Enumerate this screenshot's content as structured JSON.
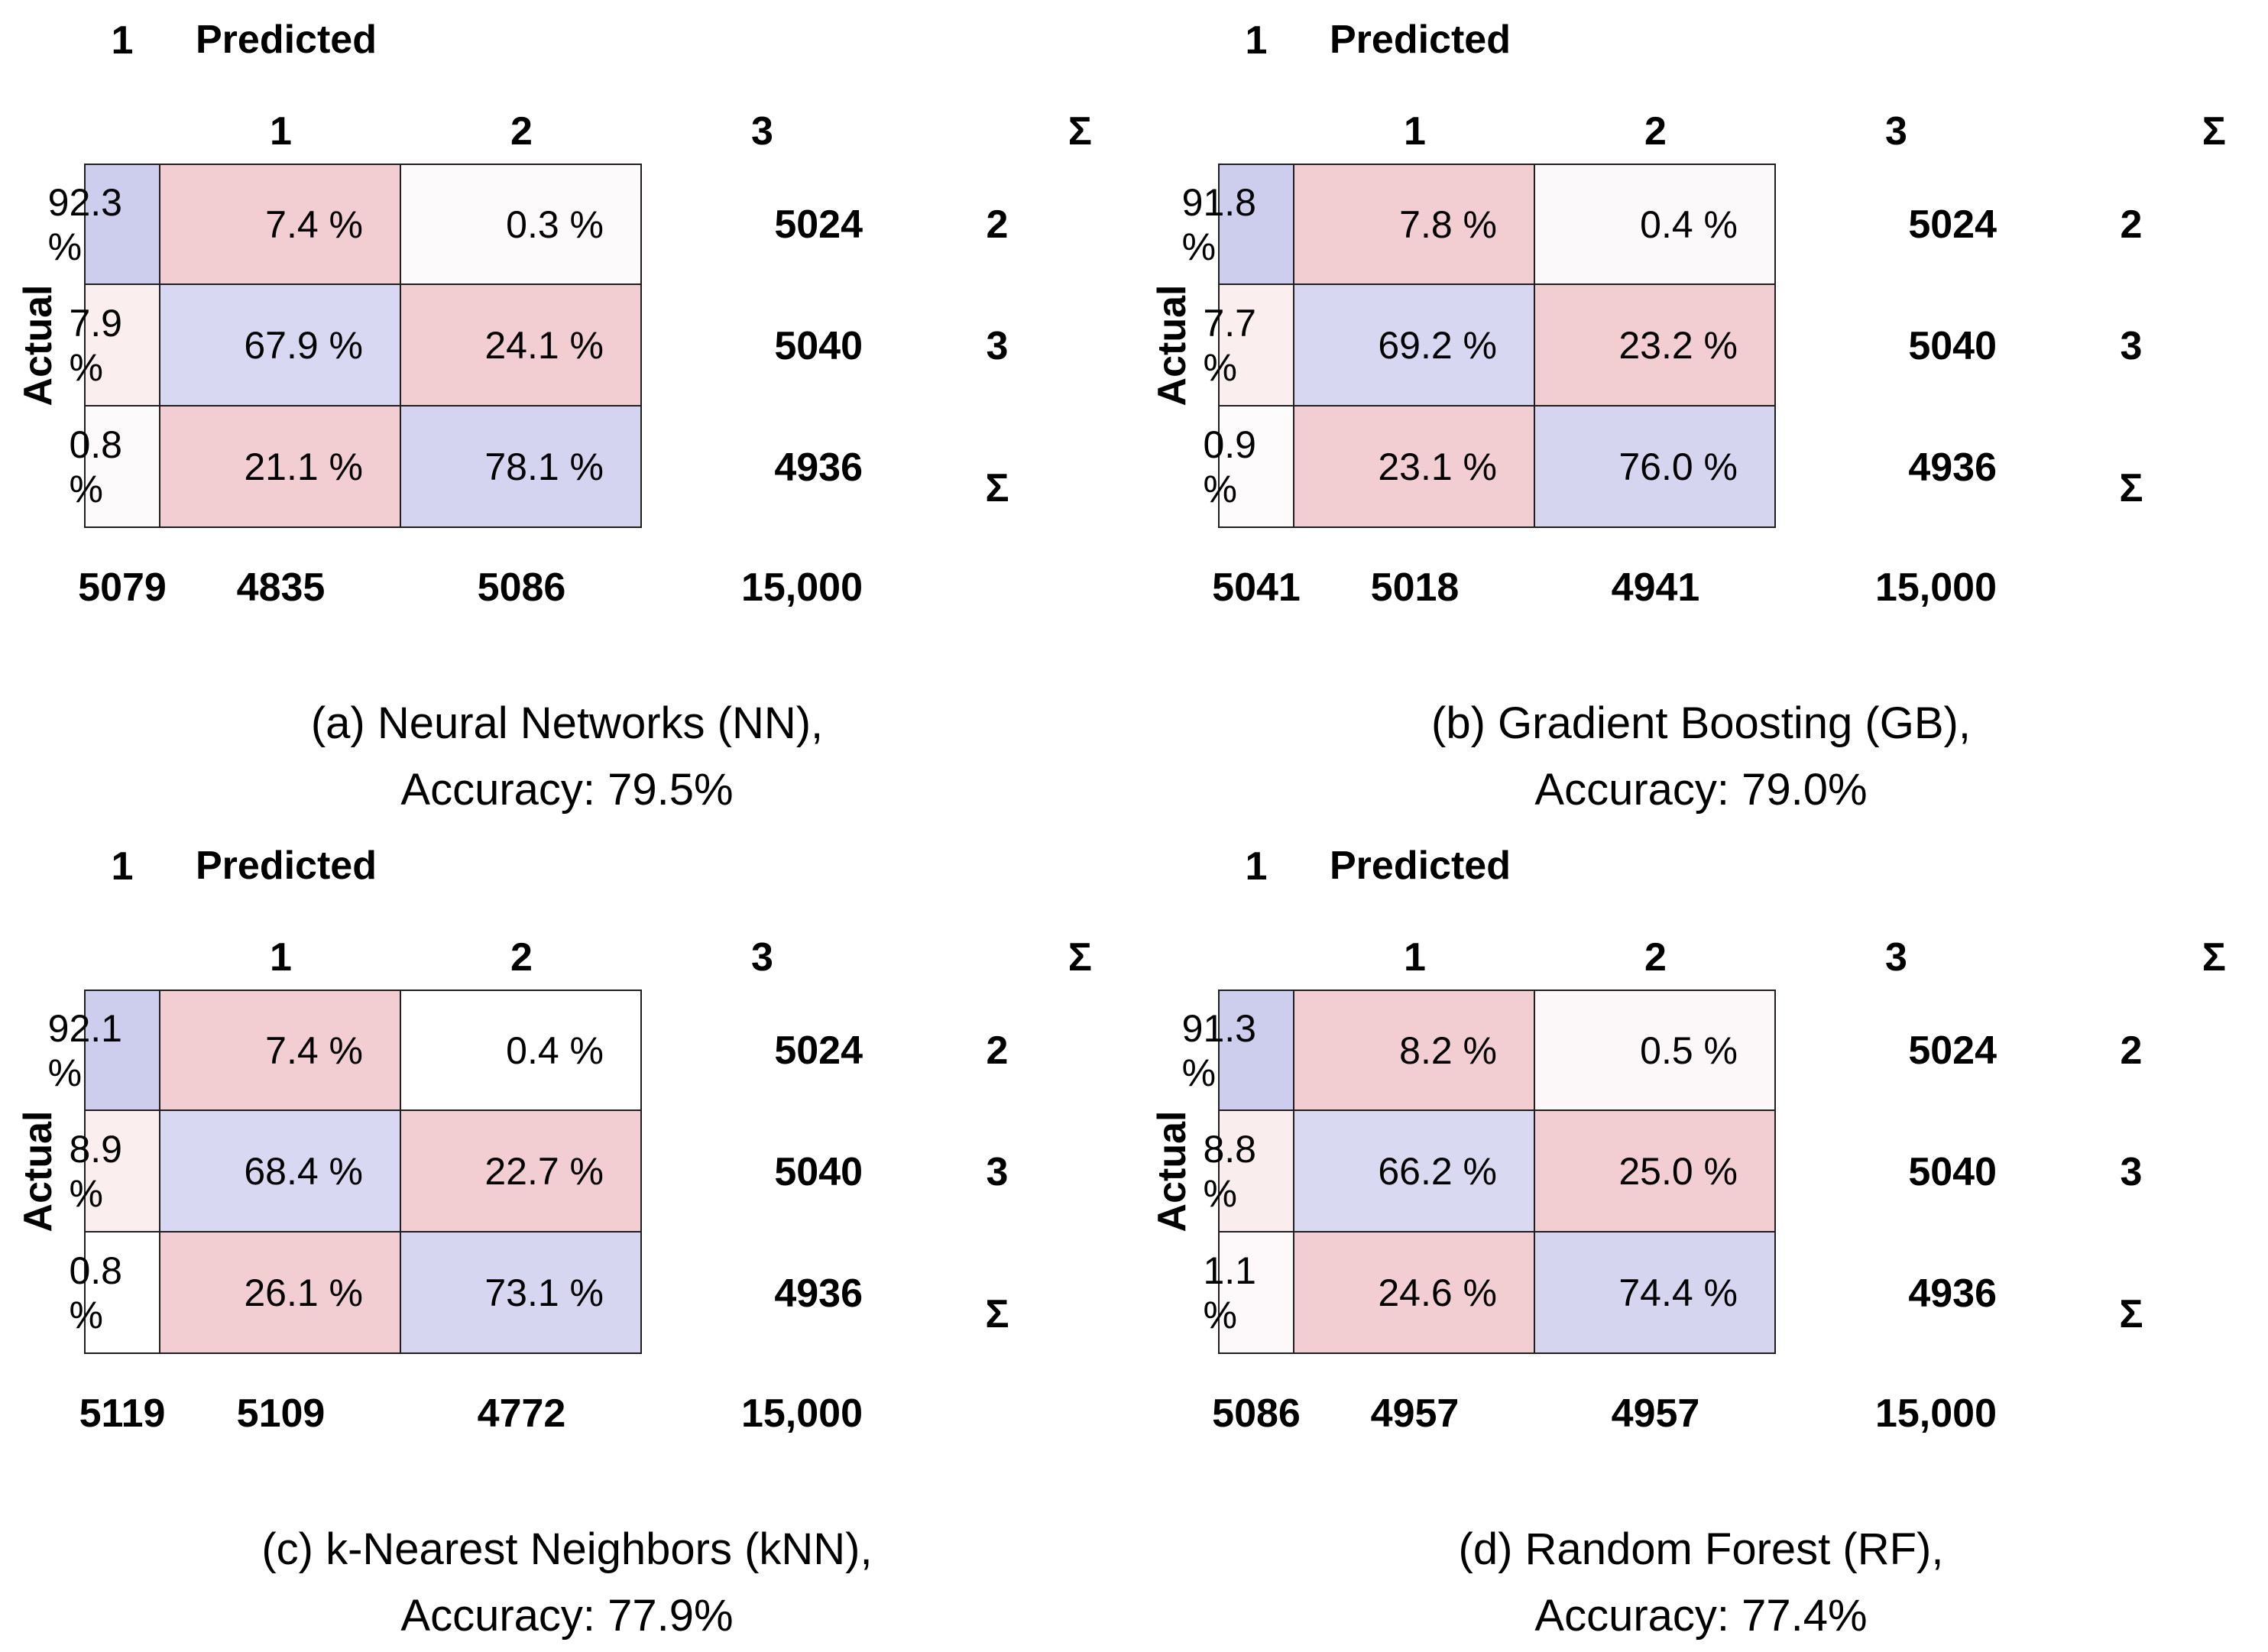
{
  "figure": {
    "background": "#ffffff",
    "grid_border_color": "#1f1f1f",
    "diag_blue": "#cdcdee",
    "offdiag_pink": "#f2ced2"
  },
  "panels": [
    {
      "id": "a",
      "predicted_label": "Predicted",
      "actual_label": "Actual",
      "sum_symbol": "Σ",
      "col_headers": [
        "1",
        "2",
        "3"
      ],
      "row_headers": [
        "1",
        "2",
        "3"
      ],
      "rows": [
        {
          "cells": [
            {
              "v": "92.3 %",
              "bg": "#cdcdee"
            },
            {
              "v": "7.4 %",
              "bg": "#f2ced2"
            },
            {
              "v": "0.3 %",
              "bg": "#fdfafb"
            }
          ],
          "total": "5024"
        },
        {
          "cells": [
            {
              "v": "7.9 %",
              "bg": "#faeeee"
            },
            {
              "v": "67.9 %",
              "bg": "#d8d8f2"
            },
            {
              "v": "24.1 %",
              "bg": "#f2ced2"
            }
          ],
          "total": "5040"
        },
        {
          "cells": [
            {
              "v": "0.8 %",
              "bg": "#fdfafb"
            },
            {
              "v": "21.1 %",
              "bg": "#f2ced2"
            },
            {
              "v": "78.1 %",
              "bg": "#d4d4f0"
            }
          ],
          "total": "4936"
        }
      ],
      "col_totals": [
        "5079",
        "4835",
        "5086"
      ],
      "grand_total": "15,000",
      "caption_line1": "(a) Neural Networks (NN),",
      "caption_line2": "Accuracy: 79.5%"
    },
    {
      "id": "b",
      "predicted_label": "Predicted",
      "actual_label": "Actual",
      "sum_symbol": "Σ",
      "col_headers": [
        "1",
        "2",
        "3"
      ],
      "row_headers": [
        "1",
        "2",
        "3"
      ],
      "rows": [
        {
          "cells": [
            {
              "v": "91.8 %",
              "bg": "#cdcdee"
            },
            {
              "v": "7.8 %",
              "bg": "#f2ced2"
            },
            {
              "v": "0.4 %",
              "bg": "#fcf9fa"
            }
          ],
          "total": "5024"
        },
        {
          "cells": [
            {
              "v": "7.7 %",
              "bg": "#faeeee"
            },
            {
              "v": "69.2 %",
              "bg": "#d7d7f1"
            },
            {
              "v": "23.2 %",
              "bg": "#f2ced2"
            }
          ],
          "total": "5040"
        },
        {
          "cells": [
            {
              "v": "0.9 %",
              "bg": "#fdfbfc"
            },
            {
              "v": "23.1 %",
              "bg": "#f2ced2"
            },
            {
              "v": "76.0 %",
              "bg": "#d5d5f0"
            }
          ],
          "total": "4936"
        }
      ],
      "col_totals": [
        "5041",
        "5018",
        "4941"
      ],
      "grand_total": "15,000",
      "caption_line1": "(b) Gradient Boosting (GB),",
      "caption_line2": "Accuracy: 79.0%"
    },
    {
      "id": "c",
      "predicted_label": "Predicted",
      "actual_label": "Actual",
      "sum_symbol": "Σ",
      "col_headers": [
        "1",
        "2",
        "3"
      ],
      "row_headers": [
        "1",
        "2",
        "3"
      ],
      "rows": [
        {
          "cells": [
            {
              "v": "92.1 %",
              "bg": "#cdcdee"
            },
            {
              "v": "7.4 %",
              "bg": "#f2ced2"
            },
            {
              "v": "0.4 %",
              "bg": "#ffffff"
            }
          ],
          "total": "5024"
        },
        {
          "cells": [
            {
              "v": "8.9 %",
              "bg": "#faeeee"
            },
            {
              "v": "68.4 %",
              "bg": "#d8d8f2"
            },
            {
              "v": "22.7 %",
              "bg": "#f2ced2"
            }
          ],
          "total": "5040"
        },
        {
          "cells": [
            {
              "v": "0.8 %",
              "bg": "#ffffff"
            },
            {
              "v": "26.1 %",
              "bg": "#f2ced2"
            },
            {
              "v": "73.1 %",
              "bg": "#d6d6f1"
            }
          ],
          "total": "4936"
        }
      ],
      "col_totals": [
        "5119",
        "5109",
        "4772"
      ],
      "grand_total": "15,000",
      "caption_line1": "(c) k-Nearest Neighbors (kNN),",
      "caption_line2": "Accuracy: 77.9%"
    },
    {
      "id": "d",
      "predicted_label": "Predicted",
      "actual_label": "Actual",
      "sum_symbol": "Σ",
      "col_headers": [
        "1",
        "2",
        "3"
      ],
      "row_headers": [
        "1",
        "2",
        "3"
      ],
      "rows": [
        {
          "cells": [
            {
              "v": "91.3 %",
              "bg": "#cdcdee"
            },
            {
              "v": "8.2 %",
              "bg": "#f2ced2"
            },
            {
              "v": "0.5 %",
              "bg": "#fcf8f9"
            }
          ],
          "total": "5024"
        },
        {
          "cells": [
            {
              "v": "8.8 %",
              "bg": "#f9eded"
            },
            {
              "v": "66.2 %",
              "bg": "#d9d9f2"
            },
            {
              "v": "25.0 %",
              "bg": "#f2ced2"
            }
          ],
          "total": "5040"
        },
        {
          "cells": [
            {
              "v": "1.1 %",
              "bg": "#fdf9fa"
            },
            {
              "v": "24.6 %",
              "bg": "#f2ced2"
            },
            {
              "v": "74.4 %",
              "bg": "#d5d5f0"
            }
          ],
          "total": "4936"
        }
      ],
      "col_totals": [
        "5086",
        "4957",
        "4957"
      ],
      "grand_total": "15,000",
      "caption_line1": "(d) Random Forest (RF),",
      "caption_line2": "Accuracy: 77.4%"
    }
  ],
  "chart_data": [
    {
      "type": "heatmap",
      "title": "(a) Neural Networks (NN), Accuracy: 79.5%",
      "xlabel": "Predicted",
      "ylabel": "Actual",
      "x_categories": [
        "1",
        "2",
        "3"
      ],
      "y_categories": [
        "1",
        "2",
        "3"
      ],
      "values_percent": [
        [
          92.3,
          7.4,
          0.3
        ],
        [
          7.9,
          67.9,
          24.1
        ],
        [
          0.8,
          21.1,
          78.1
        ]
      ],
      "row_totals": [
        5024,
        5040,
        4936
      ],
      "col_totals": [
        5079,
        4835,
        5086
      ],
      "grand_total": 15000,
      "accuracy_percent": 79.5,
      "legend_position": "none",
      "grid": true
    },
    {
      "type": "heatmap",
      "title": "(b) Gradient Boosting (GB), Accuracy: 79.0%",
      "xlabel": "Predicted",
      "ylabel": "Actual",
      "x_categories": [
        "1",
        "2",
        "3"
      ],
      "y_categories": [
        "1",
        "2",
        "3"
      ],
      "values_percent": [
        [
          91.8,
          7.8,
          0.4
        ],
        [
          7.7,
          69.2,
          23.2
        ],
        [
          0.9,
          23.1,
          76.0
        ]
      ],
      "row_totals": [
        5024,
        5040,
        4936
      ],
      "col_totals": [
        5041,
        5018,
        4941
      ],
      "grand_total": 15000,
      "accuracy_percent": 79.0,
      "legend_position": "none",
      "grid": true
    },
    {
      "type": "heatmap",
      "title": "(c) k-Nearest Neighbors (kNN), Accuracy: 77.9%",
      "xlabel": "Predicted",
      "ylabel": "Actual",
      "x_categories": [
        "1",
        "2",
        "3"
      ],
      "y_categories": [
        "1",
        "2",
        "3"
      ],
      "values_percent": [
        [
          92.1,
          7.4,
          0.4
        ],
        [
          8.9,
          68.4,
          22.7
        ],
        [
          0.8,
          26.1,
          73.1
        ]
      ],
      "row_totals": [
        5024,
        5040,
        4936
      ],
      "col_totals": [
        5119,
        5109,
        4772
      ],
      "grand_total": 15000,
      "accuracy_percent": 77.9,
      "legend_position": "none",
      "grid": true
    },
    {
      "type": "heatmap",
      "title": "(d) Random Forest (RF), Accuracy: 77.4%",
      "xlabel": "Predicted",
      "ylabel": "Actual",
      "x_categories": [
        "1",
        "2",
        "3"
      ],
      "y_categories": [
        "1",
        "2",
        "3"
      ],
      "values_percent": [
        [
          91.3,
          8.2,
          0.5
        ],
        [
          8.8,
          66.2,
          25.0
        ],
        [
          1.1,
          24.6,
          74.4
        ]
      ],
      "row_totals": [
        5024,
        5040,
        4936
      ],
      "col_totals": [
        5086,
        4957,
        4957
      ],
      "grand_total": 15000,
      "accuracy_percent": 77.4,
      "legend_position": "none",
      "grid": true
    }
  ]
}
